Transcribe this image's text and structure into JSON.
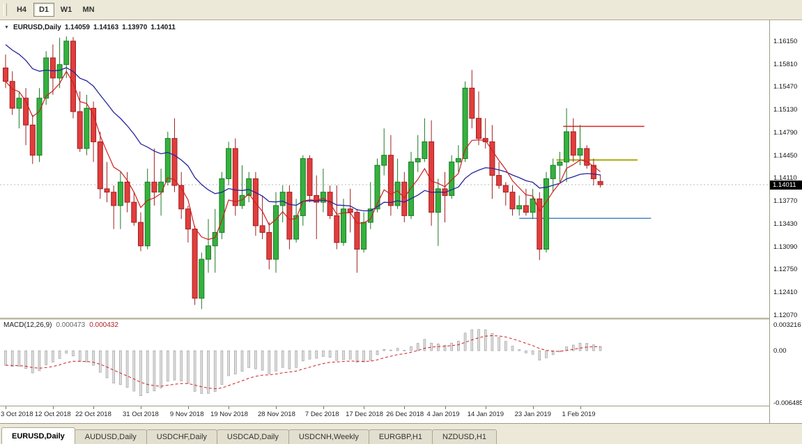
{
  "ui": {
    "toolbar": {
      "timeframes": [
        {
          "label": "H4",
          "active": false
        },
        {
          "label": "D1",
          "active": true
        },
        {
          "label": "W1",
          "active": false
        },
        {
          "label": "MN",
          "active": false
        }
      ]
    },
    "icons": {
      "symbol_dropdown": "▼"
    },
    "tabs": [
      {
        "label": "EURUSD,Daily",
        "active": true
      },
      {
        "label": "AUDUSD,Daily",
        "active": false
      },
      {
        "label": "USDCHF,Daily",
        "active": false
      },
      {
        "label": "USDCAD,Daily",
        "active": false
      },
      {
        "label": "USDCNH,Weekly",
        "active": false
      },
      {
        "label": "EURGBP,H1",
        "active": false
      },
      {
        "label": "NZDUSD,H1",
        "active": false
      }
    ]
  },
  "chart_data": {
    "type": "candlestick",
    "symbol_title": "EURUSD,Daily",
    "ohlc_display": {
      "open": "1.14059",
      "high": "1.14163",
      "low": "1.13970",
      "close": "1.14011"
    },
    "current_price_label": "1.14011",
    "price_axis_ticks": [
      "1.16150",
      "1.15810",
      "1.15470",
      "1.15130",
      "1.14790",
      "1.14450",
      "1.14110",
      "1.13770",
      "1.13430",
      "1.13090",
      "1.12750",
      "1.12410",
      "1.12070"
    ],
    "colors": {
      "up": "#35b13f",
      "up_border": "#1c7a24",
      "down": "#e23d3d",
      "down_border": "#a02020",
      "ma_fast": "#cf1f1f",
      "ma_slow": "#24249c"
    },
    "moving_averages": [
      {
        "name": "fast",
        "period": 6,
        "color": "#cf1f1f"
      },
      {
        "name": "slow",
        "period": 22,
        "color": "#24249c"
      }
    ],
    "horizontal_lines": [
      {
        "name": "resistance-line",
        "color": "#e03030",
        "price": 1.1488,
        "bar_start": 82.5,
        "bar_end": 94.5,
        "width": 1.6
      },
      {
        "name": "pivot-line",
        "color": "#a8a800",
        "price": 1.1438,
        "bar_start": 81.5,
        "bar_end": 93.5,
        "width": 2
      },
      {
        "name": "support-line",
        "color": "#4a86c8",
        "price": 1.1351,
        "bar_start": 76,
        "bar_end": 95.5,
        "width": 1.6
      }
    ],
    "date_axis_labels": [
      {
        "label": "3 Oct 2018",
        "bar": 0
      },
      {
        "label": "12 Oct 2018",
        "bar": 7
      },
      {
        "label": "22 Oct 2018",
        "bar": 13
      },
      {
        "label": "31 Oct 2018",
        "bar": 20
      },
      {
        "label": "9 Nov 2018",
        "bar": 27
      },
      {
        "label": "19 Nov 2018",
        "bar": 33
      },
      {
        "label": "28 Nov 2018",
        "bar": 40
      },
      {
        "label": "7 Dec 2018",
        "bar": 47
      },
      {
        "label": "17 Dec 2018",
        "bar": 53
      },
      {
        "label": "26 Dec 2018",
        "bar": 59
      },
      {
        "label": "4 Jan 2019",
        "bar": 65
      },
      {
        "label": "14 Jan 2019",
        "bar": 71
      },
      {
        "label": "23 Jan 2019",
        "bar": 78
      },
      {
        "label": "1 Feb 2019",
        "bar": 85
      }
    ],
    "candles": [
      [
        "3 Oct 2018",
        1.1575,
        1.1595,
        1.1545,
        1.1555
      ],
      [
        "4 Oct 2018",
        1.1555,
        1.157,
        1.1505,
        1.1515
      ],
      [
        "5 Oct 2018",
        1.1515,
        1.154,
        1.1485,
        1.153
      ],
      [
        "8 Oct 2018",
        1.153,
        1.1545,
        1.146,
        1.149
      ],
      [
        "9 Oct 2018",
        1.149,
        1.1505,
        1.1432,
        1.1445
      ],
      [
        "10 Oct 2018",
        1.1445,
        1.1545,
        1.1435,
        1.153
      ],
      [
        "11 Oct 2018",
        1.153,
        1.16,
        1.152,
        1.159
      ],
      [
        "12 Oct 2018",
        1.159,
        1.161,
        1.1535,
        1.156
      ],
      [
        "15 Oct 2018",
        1.156,
        1.162,
        1.1545,
        1.158
      ],
      [
        "16 Oct 2018",
        1.158,
        1.1622,
        1.156,
        1.1615
      ],
      [
        "17 Oct 2018",
        1.1615,
        1.1621,
        1.15,
        1.151
      ],
      [
        "18 Oct 2018",
        1.151,
        1.154,
        1.145,
        1.1455
      ],
      [
        "19 Oct 2018",
        1.1455,
        1.1535,
        1.1445,
        1.1515
      ],
      [
        "22 Oct 2018",
        1.1515,
        1.1525,
        1.1435,
        1.1465
      ],
      [
        "23 Oct 2018",
        1.1465,
        1.148,
        1.138,
        1.1395
      ],
      [
        "24 Oct 2018",
        1.1395,
        1.1435,
        1.1375,
        1.139
      ],
      [
        "25 Oct 2018",
        1.139,
        1.14,
        1.1335,
        1.137
      ],
      [
        "26 Oct 2018",
        1.137,
        1.142,
        1.1335,
        1.1405
      ],
      [
        "29 Oct 2018",
        1.1405,
        1.142,
        1.136,
        1.1375
      ],
      [
        "30 Oct 2018",
        1.1375,
        1.139,
        1.134,
        1.1345
      ],
      [
        "31 Oct 2018",
        1.1345,
        1.136,
        1.1302,
        1.131
      ],
      [
        "1 Nov 2018",
        1.131,
        1.1425,
        1.1305,
        1.1405
      ],
      [
        "2 Nov 2018",
        1.1405,
        1.1455,
        1.137,
        1.139
      ],
      [
        "5 Nov 2018",
        1.139,
        1.1425,
        1.1355,
        1.1405
      ],
      [
        "6 Nov 2018",
        1.1405,
        1.148,
        1.14,
        1.147
      ],
      [
        "7 Nov 2018",
        1.147,
        1.15,
        1.139,
        1.14
      ],
      [
        "8 Nov 2018",
        1.14,
        1.142,
        1.135,
        1.1365
      ],
      [
        "9 Nov 2018",
        1.1365,
        1.137,
        1.1315,
        1.1335
      ],
      [
        "12 Nov 2018",
        1.1335,
        1.134,
        1.1222,
        1.1232
      ],
      [
        "13 Nov 2018",
        1.1232,
        1.13,
        1.1216,
        1.129
      ],
      [
        "14 Nov 2018",
        1.129,
        1.135,
        1.127,
        1.131
      ],
      [
        "15 Nov 2018",
        1.131,
        1.1365,
        1.127,
        1.133
      ],
      [
        "16 Nov 2018",
        1.133,
        1.142,
        1.132,
        1.141
      ],
      [
        "19 Nov 2018",
        1.141,
        1.1465,
        1.14,
        1.1455
      ],
      [
        "20 Nov 2018",
        1.1455,
        1.147,
        1.1355,
        1.137
      ],
      [
        "21 Nov 2018",
        1.137,
        1.143,
        1.1365,
        1.1385
      ],
      [
        "22 Nov 2018",
        1.1385,
        1.142,
        1.1375,
        1.141
      ],
      [
        "23 Nov 2018",
        1.141,
        1.142,
        1.1325,
        1.134
      ],
      [
        "26 Nov 2018",
        1.134,
        1.1385,
        1.132,
        1.133
      ],
      [
        "27 Nov 2018",
        1.133,
        1.1345,
        1.1275,
        1.129
      ],
      [
        "28 Nov 2018",
        1.129,
        1.139,
        1.127,
        1.137
      ],
      [
        "29 Nov 2018",
        1.137,
        1.14,
        1.1345,
        1.139
      ],
      [
        "30 Nov 2018",
        1.139,
        1.14,
        1.1305,
        1.132
      ],
      [
        "3 Dec 2018",
        1.132,
        1.138,
        1.1315,
        1.1355
      ],
      [
        "4 Dec 2018",
        1.1355,
        1.1445,
        1.134,
        1.144
      ],
      [
        "5 Dec 2018",
        1.144,
        1.1445,
        1.1375,
        1.1385
      ],
      [
        "6 Dec 2018",
        1.1385,
        1.1415,
        1.132,
        1.1375
      ],
      [
        "7 Dec 2018",
        1.1375,
        1.1425,
        1.136,
        1.139
      ],
      [
        "10 Dec 2018",
        1.139,
        1.14,
        1.135,
        1.1355
      ],
      [
        "11 Dec 2018",
        1.1355,
        1.14,
        1.1305,
        1.1315
      ],
      [
        "12 Dec 2018",
        1.1315,
        1.138,
        1.131,
        1.1365
      ],
      [
        "13 Dec 2018",
        1.1365,
        1.1395,
        1.133,
        1.136
      ],
      [
        "14 Dec 2018",
        1.136,
        1.1365,
        1.127,
        1.1305
      ],
      [
        "17 Dec 2018",
        1.1305,
        1.136,
        1.13,
        1.1345
      ],
      [
        "18 Dec 2018",
        1.1345,
        1.1405,
        1.1335,
        1.1365
      ],
      [
        "19 Dec 2018",
        1.1365,
        1.144,
        1.136,
        1.143
      ],
      [
        "20 Dec 2018",
        1.143,
        1.1485,
        1.1415,
        1.1445
      ],
      [
        "21 Dec 2018",
        1.1445,
        1.1475,
        1.1355,
        1.137
      ],
      [
        "24 Dec 2018",
        1.137,
        1.144,
        1.1365,
        1.1405
      ],
      [
        "26 Dec 2018",
        1.1405,
        1.142,
        1.1345,
        1.1355
      ],
      [
        "27 Dec 2018",
        1.1355,
        1.145,
        1.135,
        1.1435
      ],
      [
        "28 Dec 2018",
        1.1435,
        1.1475,
        1.142,
        1.144
      ],
      [
        "31 Dec 2018",
        1.144,
        1.15,
        1.1435,
        1.1465
      ],
      [
        "2 Jan 2019",
        1.1465,
        1.1497,
        1.134,
        1.136
      ],
      [
        "3 Jan 2019",
        1.136,
        1.141,
        1.131,
        1.1395
      ],
      [
        "4 Jan 2019",
        1.1395,
        1.142,
        1.1345,
        1.1385
      ],
      [
        "7 Jan 2019",
        1.1385,
        1.1445,
        1.138,
        1.1435
      ],
      [
        "8 Jan 2019",
        1.1435,
        1.146,
        1.142,
        1.144
      ],
      [
        "9 Jan 2019",
        1.144,
        1.1555,
        1.1435,
        1.1545
      ],
      [
        "10 Jan 2019",
        1.1545,
        1.1572,
        1.1485,
        1.15
      ],
      [
        "11 Jan 2019",
        1.15,
        1.154,
        1.146,
        1.147
      ],
      [
        "14 Jan 2019",
        1.147,
        1.15,
        1.1455,
        1.1465
      ],
      [
        "15 Jan 2019",
        1.1465,
        1.149,
        1.138,
        1.1415
      ],
      [
        "16 Jan 2019",
        1.1415,
        1.1435,
        1.1395,
        1.14
      ],
      [
        "17 Jan 2019",
        1.14,
        1.1405,
        1.137,
        1.139
      ],
      [
        "18 Jan 2019",
        1.139,
        1.14,
        1.1355,
        1.1365
      ],
      [
        "21 Jan 2019",
        1.1365,
        1.1385,
        1.1355,
        1.137
      ],
      [
        "22 Jan 2019",
        1.137,
        1.1395,
        1.1355,
        1.136
      ],
      [
        "23 Jan 2019",
        1.136,
        1.1395,
        1.135,
        1.138
      ],
      [
        "24 Jan 2019",
        1.138,
        1.139,
        1.1289,
        1.1305
      ],
      [
        "25 Jan 2019",
        1.1305,
        1.142,
        1.13,
        1.141
      ],
      [
        "28 Jan 2019",
        1.141,
        1.144,
        1.139,
        1.143
      ],
      [
        "29 Jan 2019",
        1.143,
        1.145,
        1.1405,
        1.1435
      ],
      [
        "30 Jan 2019",
        1.1435,
        1.1515,
        1.1405,
        1.148
      ],
      [
        "31 Jan 2019",
        1.148,
        1.15,
        1.1435,
        1.1445
      ],
      [
        "1 Feb 2019",
        1.1445,
        1.149,
        1.143,
        1.1455
      ],
      [
        "4 Feb 2019",
        1.1455,
        1.146,
        1.1425,
        1.143
      ],
      [
        "5 Feb 2019",
        1.143,
        1.144,
        1.14,
        1.141
      ],
      [
        "6 Feb 2019",
        1.14059,
        1.14163,
        1.1397,
        1.14011
      ]
    ],
    "indicator": {
      "name": "MACD(12,26,9)",
      "fast": 12,
      "slow": 26,
      "signal": 9,
      "macd_value": "0.000473",
      "signal_value": "0.000432",
      "axis_ticks": [
        "0.003216",
        "0.00",
        "-0.006485"
      ],
      "histogram_color": "#dcdcdc",
      "histogram_border": "#9a9a9a",
      "signal_color": "#d02020"
    }
  }
}
